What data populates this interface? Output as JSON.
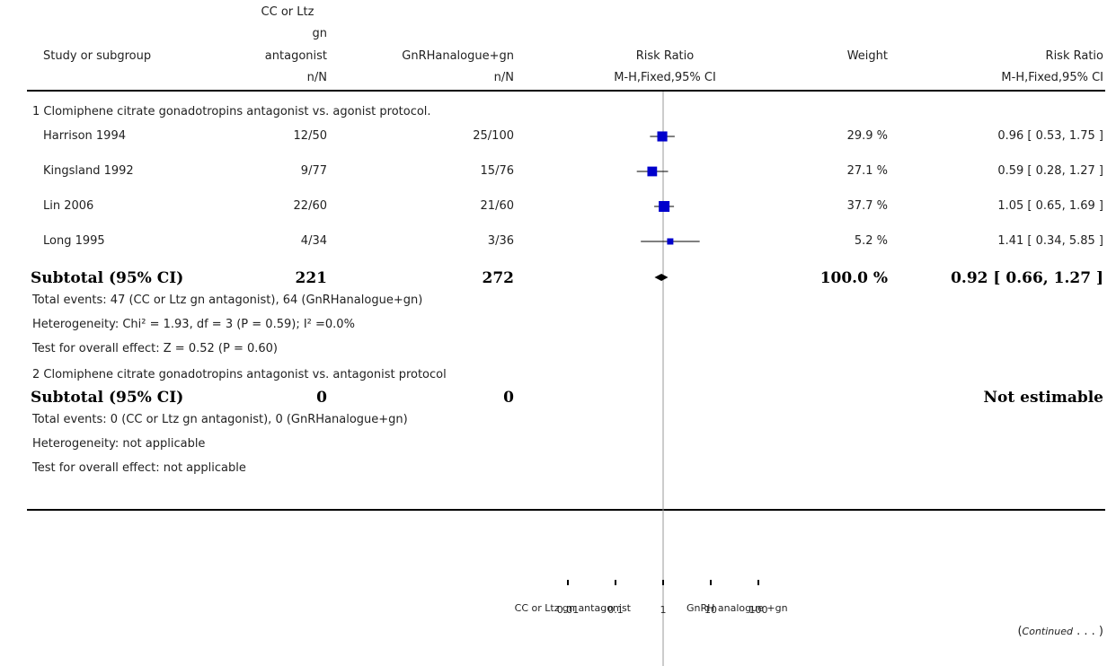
{
  "header": {
    "col_study": "Study or subgroup",
    "col_exp_l1": "CC or Ltz",
    "col_exp_l2": "gn",
    "col_exp_l3": "antagonist",
    "col_exp_sub": "n/N",
    "col_ctrl": "GnRHanalogue+gn",
    "col_ctrl_sub": "n/N",
    "col_rr": "Risk Ratio",
    "col_rr_sub": "M-H,Fixed,95% CI",
    "col_weight": "Weight",
    "col_rr2": "Risk Ratio",
    "col_rr2_sub": "M-H,Fixed,95% CI"
  },
  "groups": [
    {
      "title": "1 Clomiphene citrate    gonadotropins    antagonist vs. agonist protocol.",
      "subtotal_label": "Subtotal (95% CI)",
      "subtotal_exp": "221",
      "subtotal_ctrl": "272",
      "subtotal_weight": "100.0 %",
      "subtotal_ci": "0.92 [ 0.66, 1.27 ]",
      "total_events": "Total events: 47 (CC or Ltz    gn    antagonist), 64 (GnRHanalogue+gn)",
      "heterogeneity": "Heterogeneity: Chi² = 1.93, df = 3 (P = 0.59); I² =0.0%",
      "overall_effect": "Test for overall effect: Z = 0.52 (P = 0.60)"
    },
    {
      "title": "2 Clomiphene citrate    gonadotropins    antagonist vs. antagonist protocol",
      "subtotal_label": "Subtotal (95% CI)",
      "subtotal_exp": "0",
      "subtotal_ctrl": "0",
      "subtotal_ci": "Not estimable",
      "total_events": "Total events: 0 (CC or Ltz    gn    antagonist), 0 (GnRHanalogue+gn)",
      "heterogeneity": "Heterogeneity: not applicable",
      "overall_effect": "Test for overall effect: not applicable"
    }
  ],
  "axis": {
    "label_left": "CC or Ltz    gn    antagonist",
    "label_right": "GnRH analogue +gn"
  },
  "footer": {
    "continued_open": "(",
    "continued_word": "Continued",
    "continued_dots": " . . . )"
  },
  "chart_data": {
    "type": "forest",
    "scale": "log",
    "xlim": [
      0.01,
      100
    ],
    "ticks": [
      0.01,
      0.1,
      1,
      10,
      100
    ],
    "tick_labels": [
      "0.01",
      "0.1",
      "1",
      "10",
      "100"
    ],
    "reference_line": 1,
    "studies": [
      {
        "name": "Harrison 1994",
        "exp": "12/50",
        "ctrl": "25/100",
        "rr": 0.96,
        "lo": 0.53,
        "hi": 1.75,
        "weight": 29.9,
        "weight_label": "29.9 %",
        "ci_label": "0.96 [ 0.53, 1.75 ]"
      },
      {
        "name": "Kingsland 1992",
        "exp": "9/77",
        "ctrl": "15/76",
        "rr": 0.59,
        "lo": 0.28,
        "hi": 1.27,
        "weight": 27.1,
        "weight_label": "27.1 %",
        "ci_label": "0.59 [ 0.28, 1.27 ]"
      },
      {
        "name": "Lin 2006",
        "exp": "22/60",
        "ctrl": "21/60",
        "rr": 1.05,
        "lo": 0.65,
        "hi": 1.69,
        "weight": 37.7,
        "weight_label": "37.7 %",
        "ci_label": "1.05 [ 0.65, 1.69 ]"
      },
      {
        "name": "Long 1995",
        "exp": "4/34",
        "ctrl": "3/36",
        "rr": 1.41,
        "lo": 0.34,
        "hi": 5.85,
        "weight": 5.2,
        "weight_label": "5.2 %",
        "ci_label": "1.41 [ 0.34, 5.85 ]"
      }
    ],
    "subtotal": {
      "rr": 0.92,
      "lo": 0.66,
      "hi": 1.27
    },
    "colors": {
      "marker": "#0000cc",
      "line": "#000000",
      "diamond": "#000000",
      "ref_line": "#999999"
    }
  }
}
